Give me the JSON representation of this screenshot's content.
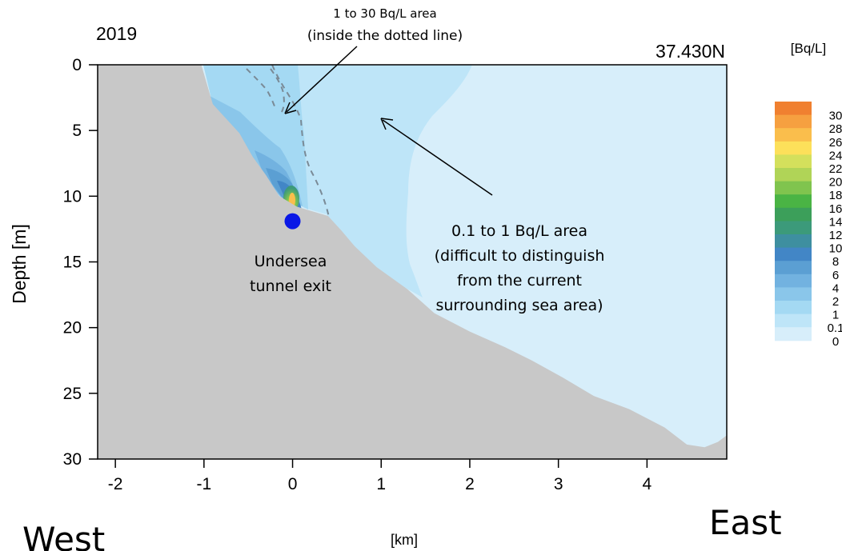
{
  "chart_data": {
    "type": "heatmap",
    "title_left": "2019",
    "title_right": "37.430N",
    "xlabel": "[km]",
    "ylabel": "Depth [m]",
    "xlim": [
      -2.2,
      4.9
    ],
    "ylim": [
      30,
      0
    ],
    "x_ticks": [
      -2,
      -1,
      0,
      1,
      2,
      3,
      4
    ],
    "y_ticks": [
      0,
      5,
      10,
      15,
      20,
      25,
      30
    ],
    "colorbar": {
      "unit_label": "[Bq/L]",
      "tick_labels": [
        "30",
        "28",
        "26",
        "24",
        "22",
        "20",
        "18",
        "16",
        "14",
        "12",
        "10",
        "8",
        "6",
        "4",
        "2",
        "1",
        "0.1",
        "0"
      ],
      "colors": [
        "#f08030",
        "#f6a040",
        "#fabe4c",
        "#fde05a",
        "#d4e05c",
        "#b0d457",
        "#80c44e",
        "#4ab444",
        "#3c9f5a",
        "#3c9a7a",
        "#3e8fa0",
        "#4286c6",
        "#5b9fd3",
        "#72b2e0",
        "#8ac6ea",
        "#a4d9f3",
        "#bee5f8",
        "#d7eefa"
      ]
    },
    "seabed_profile": [
      {
        "x": -2.2,
        "depth": 0
      },
      {
        "x": -1.03,
        "depth": 0
      },
      {
        "x": -0.9,
        "depth": 3
      },
      {
        "x": -0.6,
        "depth": 5.2
      },
      {
        "x": -0.45,
        "depth": 7
      },
      {
        "x": -0.3,
        "depth": 8.4
      },
      {
        "x": -0.15,
        "depth": 10
      },
      {
        "x": 0.05,
        "depth": 10.8
      },
      {
        "x": 0.4,
        "depth": 11.5
      },
      {
        "x": 0.55,
        "depth": 12.6
      },
      {
        "x": 0.7,
        "depth": 13.8
      },
      {
        "x": 0.95,
        "depth": 15.4
      },
      {
        "x": 1.3,
        "depth": 17.1
      },
      {
        "x": 1.6,
        "depth": 18.9
      },
      {
        "x": 2.0,
        "depth": 20.3
      },
      {
        "x": 2.4,
        "depth": 21.5
      },
      {
        "x": 2.7,
        "depth": 22.5
      },
      {
        "x": 3.05,
        "depth": 23.8
      },
      {
        "x": 3.4,
        "depth": 25.2
      },
      {
        "x": 3.8,
        "depth": 26.2
      },
      {
        "x": 4.2,
        "depth": 27.6
      },
      {
        "x": 4.45,
        "depth": 28.9
      },
      {
        "x": 4.65,
        "depth": 29.1
      },
      {
        "x": 4.8,
        "depth": 28.7
      },
      {
        "x": 4.9,
        "depth": 28.2
      },
      {
        "x": 4.9,
        "depth": 30
      },
      {
        "x": -2.2,
        "depth": 30
      }
    ],
    "outlet": {
      "x": 0.0,
      "depth": 11.9
    },
    "annotations": {
      "high_area": "1 to 30 Bq/L area",
      "high_area_note": "(inside the dotted line)",
      "low_area_lines": [
        "0.1 to 1 Bq/L area",
        "(difficult to distinguish",
        "from the current",
        "surrounding sea area)"
      ],
      "tunnel_lines": [
        "Undersea",
        "tunnel exit"
      ],
      "west": "West",
      "east": "East"
    }
  }
}
